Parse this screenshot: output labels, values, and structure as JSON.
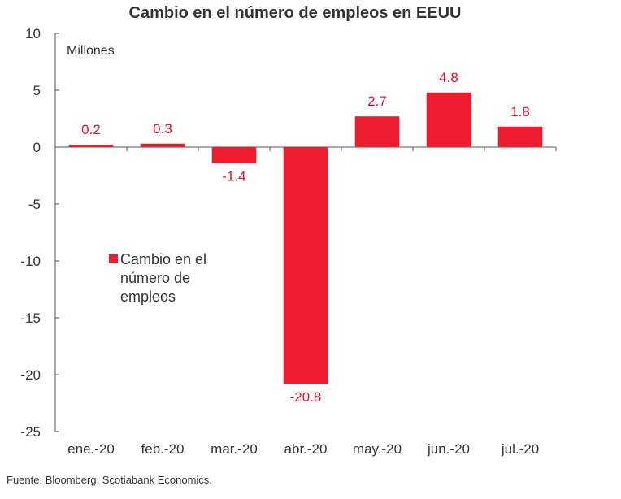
{
  "chart_data": {
    "type": "bar",
    "title": "Cambio en el número de empleos en EEUU",
    "unit_label": "Millones",
    "categories": [
      "ene.-20",
      "feb.-20",
      "mar.-20",
      "abr.-20",
      "may.-20",
      "jun.-20",
      "jul.-20"
    ],
    "series": [
      {
        "name": "Cambio en el número de empleos",
        "values": [
          0.2,
          0.3,
          -1.4,
          -20.8,
          2.7,
          4.8,
          1.8
        ],
        "labels": [
          "0.2",
          "0.3",
          "-1.4",
          "-20.8",
          "2.7",
          "4.8",
          "1.8"
        ],
        "color": "#ee1c2e"
      }
    ],
    "ylim": [
      -25,
      10
    ],
    "yticks": [
      10,
      5,
      0,
      -5,
      -10,
      -15,
      -20,
      -25
    ],
    "grid": false,
    "legend": {
      "placement": "center-left",
      "lines": [
        "Cambio en el",
        "número de",
        "empleos"
      ]
    },
    "label_color": "#e8102a",
    "source": "Fuente: Bloomberg, Scotiabank Economics."
  }
}
